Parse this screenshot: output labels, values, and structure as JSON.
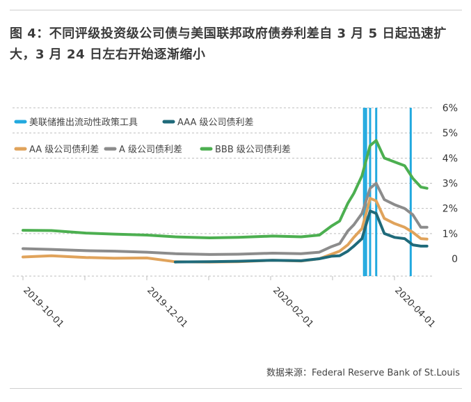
{
  "title": "图 4：不同评级投资级公司债与美国联邦政府债券利差自 3 月 5 日起迅速扩大，3 月 24 日左右开始逐渐缩小",
  "source": "数据来源：Federal Reserve Bank of St.Louis",
  "colors": {
    "AAA": "#1f6a7a",
    "AA": "#e0a35b",
    "A": "#8c8c8c",
    "BBB": "#4caf50",
    "tool": "#22a9df"
  },
  "chart_data": {
    "type": "line",
    "title": "",
    "xlabel": "",
    "ylabel": "",
    "ylim": [
      -0.6,
      6
    ],
    "y_ticks": [
      "6%",
      "5%",
      "4%",
      "3%",
      "2%",
      "1%",
      "0"
    ],
    "x_ticks": [
      "2019-10-01",
      "2019-12-01",
      "2020-02-01",
      "2020-04-01"
    ],
    "legend": {
      "tool": "美联储推出流动性政策工具",
      "AAA": "AAA 级公司债利差",
      "AA": "AA 级公司债利差",
      "A": "A 级公司债利差",
      "BBB": "BBB 级公司债利差"
    },
    "vertical_lines": [
      "2020-03-17",
      "2020-03-18",
      "2020-03-20",
      "2020-03-23",
      "2020-04-09"
    ],
    "series": [
      {
        "key": "BBB",
        "name": "BBB 级公司债利差",
        "points": [
          [
            "2019-10-01",
            1.13
          ],
          [
            "2019-10-15",
            1.12
          ],
          [
            "2019-11-01",
            1.02
          ],
          [
            "2019-11-15",
            0.98
          ],
          [
            "2019-12-01",
            0.94
          ],
          [
            "2019-12-15",
            0.87
          ],
          [
            "2020-01-01",
            0.83
          ],
          [
            "2020-01-15",
            0.85
          ],
          [
            "2020-02-01",
            0.9
          ],
          [
            "2020-02-15",
            0.87
          ],
          [
            "2020-02-24",
            0.94
          ],
          [
            "2020-03-01",
            1.3
          ],
          [
            "2020-03-05",
            1.5
          ],
          [
            "2020-03-09",
            2.2
          ],
          [
            "2020-03-12",
            2.6
          ],
          [
            "2020-03-16",
            3.3
          ],
          [
            "2020-03-20",
            4.5
          ],
          [
            "2020-03-23",
            4.7
          ],
          [
            "2020-03-27",
            4.0
          ],
          [
            "2020-04-01",
            3.85
          ],
          [
            "2020-04-06",
            3.7
          ],
          [
            "2020-04-10",
            3.2
          ],
          [
            "2020-04-14",
            2.85
          ],
          [
            "2020-04-17",
            2.8
          ]
        ]
      },
      {
        "key": "A",
        "name": "A 级公司债利差",
        "points": [
          [
            "2019-10-01",
            0.4
          ],
          [
            "2019-10-15",
            0.37
          ],
          [
            "2019-11-01",
            0.32
          ],
          [
            "2019-11-15",
            0.3
          ],
          [
            "2019-12-01",
            0.26
          ],
          [
            "2019-12-15",
            0.2
          ],
          [
            "2020-01-01",
            0.17
          ],
          [
            "2020-01-15",
            0.18
          ],
          [
            "2020-02-01",
            0.22
          ],
          [
            "2020-02-15",
            0.2
          ],
          [
            "2020-02-24",
            0.26
          ],
          [
            "2020-03-01",
            0.48
          ],
          [
            "2020-03-05",
            0.6
          ],
          [
            "2020-03-09",
            1.1
          ],
          [
            "2020-03-12",
            1.35
          ],
          [
            "2020-03-16",
            1.8
          ],
          [
            "2020-03-20",
            2.8
          ],
          [
            "2020-03-23",
            3.0
          ],
          [
            "2020-03-27",
            2.35
          ],
          [
            "2020-04-01",
            2.15
          ],
          [
            "2020-04-06",
            2.0
          ],
          [
            "2020-04-10",
            1.75
          ],
          [
            "2020-04-14",
            1.25
          ],
          [
            "2020-04-17",
            1.25
          ]
        ]
      },
      {
        "key": "AA",
        "name": "AA 级公司债利差",
        "points": [
          [
            "2019-10-01",
            0.07
          ],
          [
            "2019-10-15",
            0.12
          ],
          [
            "2019-11-01",
            0.05
          ],
          [
            "2019-11-15",
            0.02
          ],
          [
            "2019-12-01",
            0.03
          ],
          [
            "2019-12-15",
            -0.12
          ],
          [
            "2020-01-01",
            -0.13
          ],
          [
            "2020-01-15",
            -0.12
          ],
          [
            "2020-02-01",
            -0.06
          ],
          [
            "2020-02-15",
            -0.09
          ],
          [
            "2020-02-24",
            0.0
          ],
          [
            "2020-03-01",
            0.18
          ],
          [
            "2020-03-05",
            0.3
          ],
          [
            "2020-03-09",
            0.55
          ],
          [
            "2020-03-12",
            0.85
          ],
          [
            "2020-03-16",
            1.2
          ],
          [
            "2020-03-20",
            2.4
          ],
          [
            "2020-03-23",
            2.3
          ],
          [
            "2020-03-27",
            1.6
          ],
          [
            "2020-04-01",
            1.4
          ],
          [
            "2020-04-06",
            1.25
          ],
          [
            "2020-04-10",
            1.05
          ],
          [
            "2020-04-14",
            0.8
          ],
          [
            "2020-04-17",
            0.78
          ]
        ]
      },
      {
        "key": "AAA",
        "name": "AAA 级公司债利差",
        "points": [
          [
            "2019-12-15",
            -0.13
          ],
          [
            "2020-01-01",
            -0.12
          ],
          [
            "2020-01-15",
            -0.1
          ],
          [
            "2020-02-01",
            -0.06
          ],
          [
            "2020-02-15",
            -0.08
          ],
          [
            "2020-02-24",
            0.0
          ],
          [
            "2020-03-01",
            0.1
          ],
          [
            "2020-03-05",
            0.12
          ],
          [
            "2020-03-09",
            0.3
          ],
          [
            "2020-03-12",
            0.5
          ],
          [
            "2020-03-16",
            0.8
          ],
          [
            "2020-03-20",
            1.9
          ],
          [
            "2020-03-23",
            1.8
          ],
          [
            "2020-03-27",
            1.0
          ],
          [
            "2020-04-01",
            0.85
          ],
          [
            "2020-04-06",
            0.8
          ],
          [
            "2020-04-10",
            0.55
          ],
          [
            "2020-04-14",
            0.5
          ],
          [
            "2020-04-17",
            0.5
          ]
        ]
      }
    ]
  }
}
